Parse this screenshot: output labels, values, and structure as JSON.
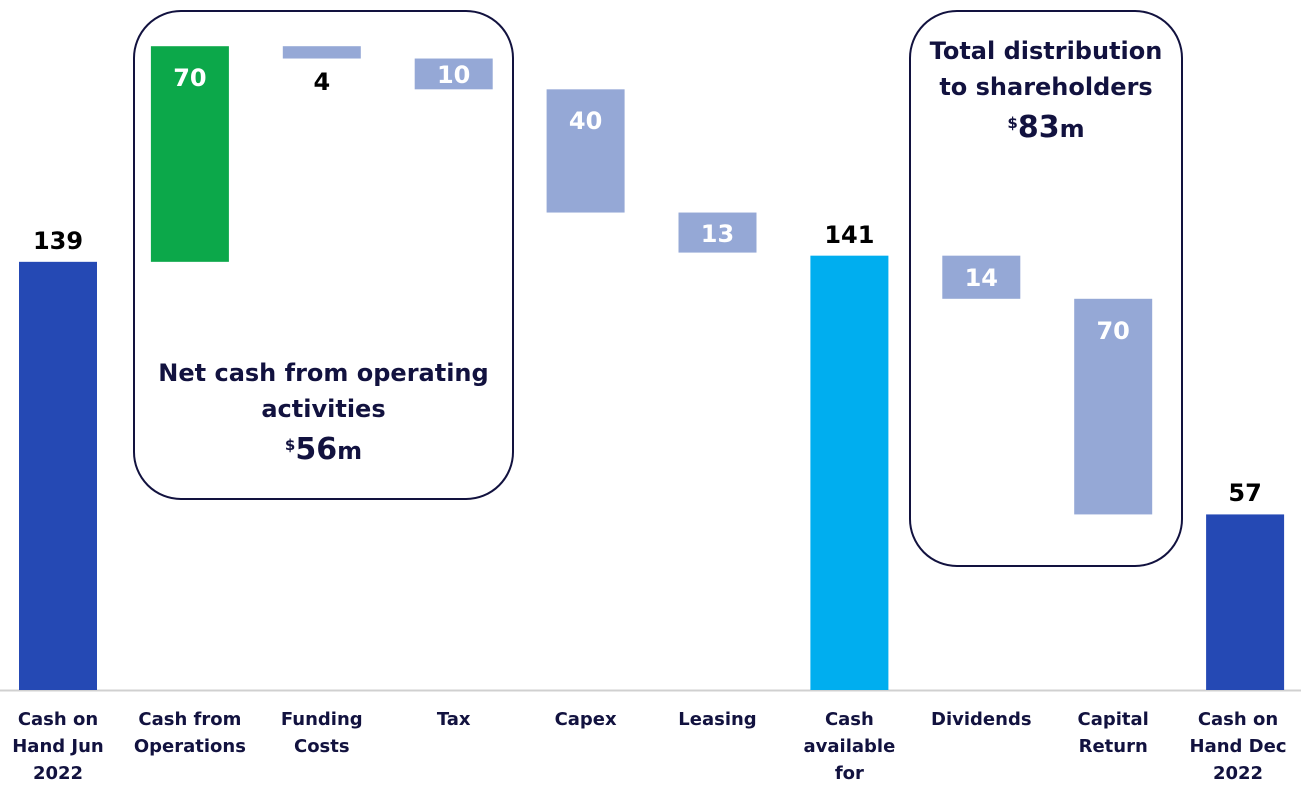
{
  "chart_data": {
    "type": "waterfall",
    "categories": [
      "Cash on Hand Jun 2022",
      "Cash from Operations",
      "Funding Costs",
      "Tax",
      "Capex",
      "Leasing",
      "Cash available for distributions",
      "Dividends",
      "Capital Return",
      "Cash on Hand Dec 2022"
    ],
    "values": [
      139,
      70,
      -4,
      -10,
      -40,
      -13,
      141,
      -14,
      -70,
      57
    ],
    "value_labels": [
      "139",
      "70",
      "4",
      "10",
      "40",
      "13",
      "141",
      "14",
      "70",
      "57"
    ],
    "totals": [
      0,
      6,
      9
    ],
    "colors": [
      "#2549b4",
      "#0ca84a",
      "#95a8d6",
      "#95a8d6",
      "#95a8d6",
      "#95a8d6",
      "#00aeef",
      "#95a8d6",
      "#95a8d6",
      "#2549b4"
    ],
    "ylim": [
      0,
      224
    ],
    "annotations": [
      {
        "text": "Net cash from operating activities",
        "currency": "$",
        "amount": 56,
        "unit": "m"
      },
      {
        "text": "Total distribution to shareholders",
        "currency": "$",
        "amount": 83,
        "unit": "m"
      }
    ]
  }
}
